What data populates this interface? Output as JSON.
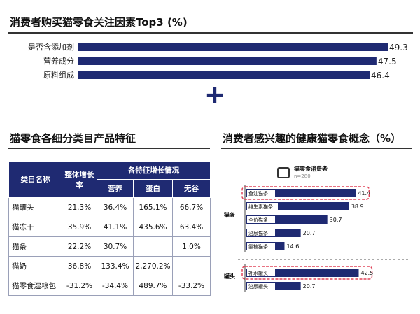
{
  "top_chart": {
    "title": "消费者购买猫零食关注因素Top3 (%)"
  },
  "plus_symbol": "+",
  "table_section": {
    "title": "猫零食各细分类目产品特征",
    "headers": {
      "category": "类目名称",
      "overall_growth": "整体增长率",
      "feature_group": "各特征增长情况",
      "features": [
        "营养",
        "蛋白",
        "无谷"
      ]
    },
    "rows": [
      {
        "name": "猫罐头",
        "overall": "21.3%",
        "nutrition": "36.4%",
        "protein": "165.1%",
        "grain_free": "66.7%"
      },
      {
        "name": "猫冻干",
        "overall": "35.9%",
        "nutrition": "41.1%",
        "protein": "435.6%",
        "grain_free": "63.4%"
      },
      {
        "name": "猫条",
        "overall": "22.2%",
        "nutrition": "30.7%",
        "protein": "",
        "grain_free": "1.0%"
      },
      {
        "name": "猫奶",
        "overall": "36.8%",
        "nutrition": "133.4%",
        "protein": "2,270.2%",
        "grain_free": ""
      },
      {
        "name": "猫零食湿粮包",
        "overall": "-31.2%",
        "nutrition": "-34.4%",
        "protein": "489.7%",
        "grain_free": "-33.2%"
      }
    ]
  },
  "right_section": {
    "title": "消费者感兴趣的健康猫零食概念（%）",
    "legend_label": "猫零食消费者",
    "legend_sub": "n=280",
    "group_labels": [
      "猫条",
      "罐头"
    ]
  },
  "colors": {
    "navy": "#1f2a72",
    "highlight": "#e0455a"
  },
  "chart_data": [
    {
      "type": "bar",
      "orientation": "horizontal",
      "title": "消费者购买猫零食关注因素Top3 (%)",
      "categories": [
        "是否含添加剂",
        "营养成分",
        "原料组成"
      ],
      "values": [
        49.3,
        47.5,
        46.4
      ],
      "value_labels": [
        "49.3",
        "47.5",
        "46.4"
      ]
    },
    {
      "type": "bar",
      "orientation": "horizontal",
      "title": "消费者感兴趣的健康猫零食概念（%）",
      "categories": [
        "鱼油猫条",
        "维生素猫条",
        "全价猫条",
        "泌尿猫条",
        "氨糖猫条",
        "补水罐头",
        "泌尿罐头"
      ],
      "values": [
        41.4,
        38.9,
        30.7,
        20.7,
        14.6,
        42.5,
        20.7
      ],
      "value_labels": [
        "41.4",
        "38.9",
        "30.7",
        "20.7",
        "14.6",
        "42.5",
        "20.7"
      ],
      "groups": [
        "猫条",
        "猫条",
        "猫条",
        "猫条",
        "猫条",
        "罐头",
        "罐头"
      ],
      "highlighted": [
        true,
        false,
        false,
        false,
        false,
        true,
        false
      ]
    }
  ]
}
